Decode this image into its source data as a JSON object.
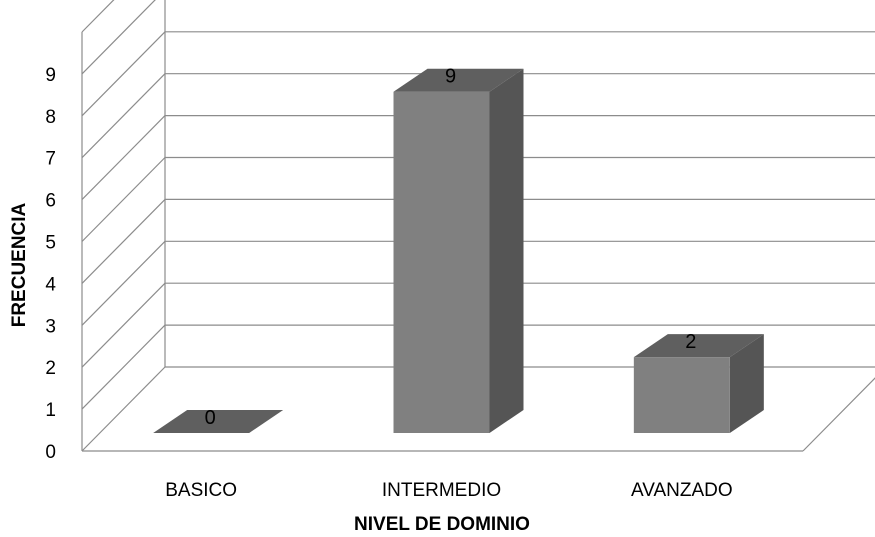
{
  "chart_data": {
    "type": "bar",
    "style": "3d-column",
    "categories": [
      "BASICO",
      "INTERMEDIO",
      "AVANZADO"
    ],
    "values": [
      0,
      9,
      2
    ],
    "data_labels": [
      "0",
      "9",
      "2"
    ],
    "xlabel": "NIVEL DE DOMINIO",
    "ylabel": "FRECUENCIA",
    "ylim": [
      0,
      9
    ],
    "yticks": [
      "0",
      "1",
      "2",
      "3",
      "4",
      "5",
      "6",
      "7",
      "8",
      "9"
    ],
    "grid": true,
    "legend": "none",
    "colors": {
      "bar_front": "#808080",
      "bar_side": "#555555",
      "bar_top": "#5f5f5f",
      "gridline": "#8c8c8c"
    }
  }
}
